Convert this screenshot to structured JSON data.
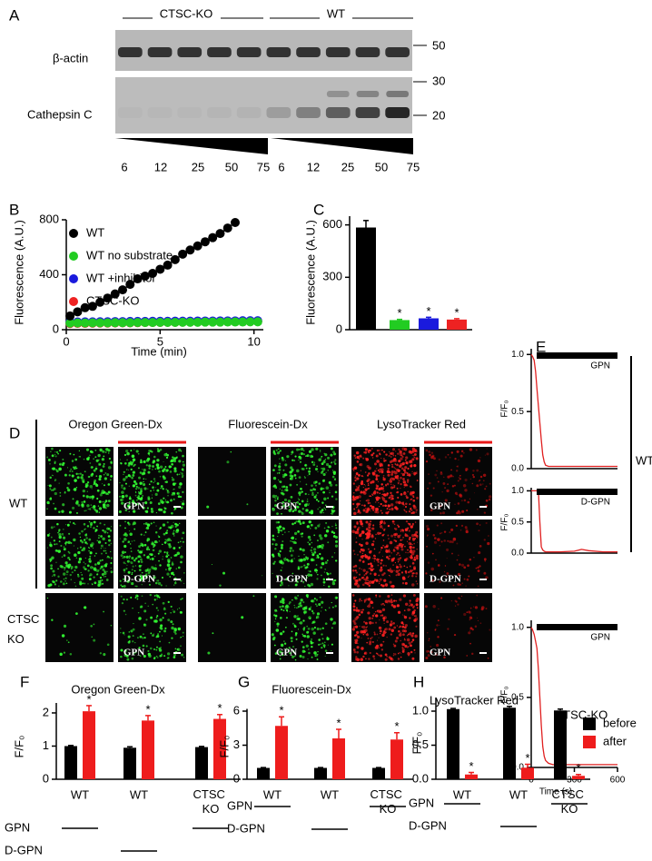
{
  "blot": {
    "panel": "A",
    "groups": [
      "CTSC-KO",
      "WT"
    ],
    "rows": [
      "β-actin",
      "Cathepsin C"
    ],
    "size_markers": [
      "50",
      "30",
      "20"
    ],
    "doses": [
      "6",
      "12",
      "25",
      "50",
      "75",
      "6",
      "12",
      "25",
      "50",
      "75"
    ]
  },
  "micrographs": {
    "panel": "D",
    "columns": [
      "Oregon Green-Dx",
      "Fluorescein-Dx",
      "LysoTracker Red"
    ],
    "row_group_labels": [
      "WT",
      "CTSC KO"
    ],
    "treatments": [
      "GPN",
      "D-GPN",
      "GPN"
    ]
  },
  "chart_data": [
    {
      "type": "line",
      "panel": "B",
      "xlabel": "Time (min)",
      "ylabel": "Fluorescence (A.U.)",
      "markers": true,
      "legend": "top-left",
      "x": [
        0.2,
        0.6,
        1.0,
        1.4,
        1.8,
        2.2,
        2.6,
        3.0,
        3.4,
        3.8,
        4.2,
        4.6,
        5.0,
        5.4,
        5.8,
        6.2,
        6.6,
        7.0,
        7.4,
        7.8,
        8.2,
        8.6,
        9.0,
        9.4,
        9.8,
        10.2
      ],
      "xlim": [
        0,
        10.5
      ],
      "xticks": [
        0,
        5,
        10
      ],
      "ylim": [
        0,
        800
      ],
      "yticks": [
        0,
        400,
        800
      ],
      "series": [
        {
          "name": "CTSC-KO",
          "color": "#ee2222",
          "values": [
            45,
            46,
            46,
            47,
            48,
            48,
            49,
            50,
            50,
            51,
            52,
            52,
            53,
            54,
            54,
            55,
            56,
            56,
            57,
            58,
            58,
            59,
            60,
            60,
            61,
            62
          ]
        },
        {
          "name": "WT +inhibitor",
          "color": "#1a1add",
          "values": [
            55,
            56,
            57,
            57,
            58,
            58,
            59,
            59,
            60,
            60,
            60,
            61,
            61,
            61,
            62,
            62,
            62,
            63,
            63,
            63,
            64,
            64,
            64,
            65,
            65,
            65
          ]
        },
        {
          "name": "WT no substrate",
          "color": "#22cc22",
          "values": [
            48,
            49,
            49,
            50,
            50,
            50,
            51,
            51,
            51,
            52,
            52,
            52,
            53,
            53,
            53,
            54,
            54,
            54,
            55,
            55,
            55,
            56,
            56,
            56,
            57,
            57
          ]
        },
        {
          "name": "WT",
          "color": "#000000",
          "values": [
            100,
            130,
            160,
            170,
            200,
            230,
            260,
            290,
            330,
            370,
            390,
            410,
            440,
            470,
            510,
            550,
            580,
            610,
            640,
            670,
            700,
            740,
            780,
            null,
            null,
            null
          ]
        }
      ]
    },
    {
      "type": "bar",
      "panel": "C",
      "ylabel": "Fluorescence (A.U.)",
      "categories": [
        null,
        null,
        null,
        null
      ],
      "values": [
        585,
        55,
        65,
        58
      ],
      "errors": [
        40,
        4,
        6,
        5
      ],
      "colors": [
        "#000000",
        "#22cc22",
        "#1a1add",
        "#ee2222"
      ],
      "significance": [
        null,
        "*",
        "*",
        "*"
      ],
      "ylim": [
        0,
        650
      ],
      "yticks": [
        0,
        300,
        600
      ]
    },
    {
      "type": "line",
      "panel": "E",
      "ylabel": "F/F₀",
      "treatment": "GPN",
      "group_label": "WT",
      "x": [
        0,
        10,
        20,
        30,
        40,
        50,
        60,
        70,
        80,
        90,
        100,
        120,
        150,
        200,
        300,
        350,
        400,
        500,
        600
      ],
      "xlim": [
        0,
        600
      ],
      "ylim": [
        0,
        1.05
      ],
      "yticks": [
        {
          "value": 0,
          "label": "0.0"
        },
        {
          "value": 0.5,
          "label": "0.5"
        },
        {
          "value": 1,
          "label": "1.0"
        }
      ],
      "series": [
        {
          "color": "#e02020",
          "values": [
            1.0,
            0.98,
            0.95,
            0.85,
            0.7,
            0.55,
            0.4,
            0.25,
            0.12,
            0.06,
            0.03,
            0.02,
            0.02,
            0.02,
            0.02,
            0.02,
            0.02,
            0.02,
            0.02
          ]
        }
      ]
    },
    {
      "type": "line",
      "ylabel": "F/F₀",
      "treatment": "D-GPN",
      "x": [
        0,
        10,
        20,
        30,
        40,
        50,
        60,
        70,
        80,
        90,
        100,
        120,
        150,
        200,
        300,
        350,
        400,
        500,
        600
      ],
      "xlim": [
        0,
        600
      ],
      "ylim": [
        0,
        1.05
      ],
      "yticks": [
        {
          "value": 0,
          "label": "0.0"
        },
        {
          "value": 0.5,
          "label": "0.5"
        },
        {
          "value": 1,
          "label": "1.0"
        }
      ],
      "series": [
        {
          "color": "#e02020",
          "values": [
            1.0,
            1.0,
            1.0,
            1.0,
            1.0,
            1.0,
            0.5,
            0.1,
            0.05,
            0.03,
            0.02,
            0.02,
            0.02,
            0.02,
            0.03,
            0.06,
            0.04,
            0.02,
            0.02
          ]
        }
      ]
    },
    {
      "type": "line",
      "ylabel": "F/F₀",
      "treatment": "GPN",
      "group_label": "CTSC-KO",
      "xlabel": "Time (s)",
      "x": [
        0,
        10,
        20,
        30,
        40,
        50,
        60,
        70,
        80,
        90,
        100,
        120,
        150,
        200,
        300,
        350,
        400,
        500,
        600
      ],
      "xlim": [
        0,
        600
      ],
      "xticks": [
        0,
        300,
        600
      ],
      "ylim": [
        0,
        1.05
      ],
      "yticks": [
        {
          "value": 0,
          "label": "0.0"
        },
        {
          "value": 0.5,
          "label": "0.5"
        },
        {
          "value": 1,
          "label": "1.0"
        }
      ],
      "series": [
        {
          "color": "#e02020",
          "values": [
            1.0,
            0.98,
            0.95,
            0.9,
            0.85,
            0.7,
            0.5,
            0.3,
            0.15,
            0.08,
            0.05,
            0.03,
            0.02,
            0.02,
            0.02,
            0.02,
            0.02,
            0.02,
            0.02
          ]
        }
      ]
    },
    {
      "type": "bar",
      "panel": "F",
      "title": "Oregon Green-Dx",
      "ylabel": "F/F₀",
      "categories": [
        "WT",
        "WT",
        "CTSC KO"
      ],
      "series": [
        {
          "color": "#000000",
          "values": [
            1.0,
            0.95,
            0.97
          ],
          "errors": [
            0.02,
            0.03,
            0.02
          ]
        },
        {
          "color": "#ee1c1c",
          "values": [
            2.05,
            1.77,
            1.82
          ],
          "errors": [
            0.17,
            0.15,
            0.13
          ],
          "significance": [
            "*",
            "*",
            "*"
          ]
        }
      ],
      "ylim": [
        0,
        2.3
      ],
      "yticks": [
        0,
        1,
        2
      ],
      "treatments": [
        {
          "name": "GPN",
          "applied": [
            true,
            false,
            true
          ]
        },
        {
          "name": "D-GPN",
          "applied": [
            false,
            true,
            false
          ]
        }
      ]
    },
    {
      "type": "bar",
      "panel": "G",
      "title": "Fluorescein-Dx",
      "ylabel": "F/F₀",
      "categories": [
        "WT",
        "WT",
        "CTSC KO"
      ],
      "series": [
        {
          "color": "#000000",
          "values": [
            1.0,
            1.0,
            1.0
          ],
          "errors": [
            0.03,
            0.03,
            0.03
          ]
        },
        {
          "color": "#ee1c1c",
          "values": [
            4.7,
            3.6,
            3.5
          ],
          "errors": [
            0.8,
            0.8,
            0.6
          ],
          "significance": [
            "*",
            "*",
            "*"
          ]
        }
      ],
      "ylim": [
        0,
        6.2
      ],
      "yticks": [
        0,
        3,
        6
      ],
      "treatments": [
        {
          "name": "GPN",
          "applied": [
            true,
            false,
            true
          ]
        },
        {
          "name": "D-GPN",
          "applied": [
            false,
            true,
            false
          ]
        }
      ]
    },
    {
      "type": "bar",
      "panel": "H",
      "title": "LysoTracker Red",
      "ylabel": "F/F₀",
      "categories": [
        "WT",
        "WT",
        "CTSC KO"
      ],
      "legend": "right",
      "series": [
        {
          "name": "before",
          "color": "#000000",
          "values": [
            1.03,
            1.05,
            1.01
          ],
          "errors": [
            0.01,
            0.02,
            0.02
          ]
        },
        {
          "name": "after",
          "color": "#ee1c1c",
          "values": [
            0.07,
            0.17,
            0.05
          ],
          "errors": [
            0.03,
            0.05,
            0.02
          ],
          "significance": [
            "*",
            "*",
            "*"
          ]
        }
      ],
      "ylim": [
        0,
        1.2
      ],
      "yticks": [
        {
          "value": 0,
          "label": "0.0"
        },
        {
          "value": 0.5,
          "label": "0.5"
        },
        {
          "value": 1,
          "label": "1.0"
        }
      ],
      "treatments": [
        {
          "name": "GPN",
          "applied": [
            true,
            false,
            true
          ]
        },
        {
          "name": "D-GPN",
          "applied": [
            false,
            true,
            false
          ]
        }
      ]
    }
  ]
}
